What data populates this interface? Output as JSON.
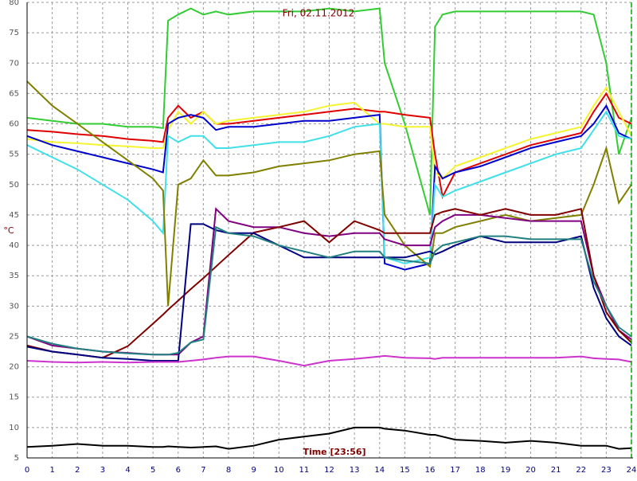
{
  "chart_data": {
    "type": "line",
    "title": "Fri, 02.11.2012",
    "y_label": "°C",
    "x_label": "Time [23:56]",
    "x": [
      0,
      1,
      2,
      3,
      4,
      5,
      5.4,
      5.6,
      6,
      6.5,
      7,
      7.5,
      8,
      9,
      10,
      11,
      12,
      13,
      14,
      14.2,
      15,
      16,
      16.2,
      16.5,
      17,
      18,
      19,
      20,
      21,
      22,
      22.5,
      23,
      23.5,
      24
    ],
    "xlim": [
      0,
      24
    ],
    "xticks": [
      0,
      1,
      2,
      3,
      4,
      5,
      6,
      7,
      8,
      9,
      10,
      11,
      12,
      13,
      14,
      15,
      16,
      17,
      18,
      19,
      20,
      21,
      22,
      23,
      24
    ],
    "ylim": [
      5,
      80
    ],
    "yticks": [
      5,
      10,
      15,
      20,
      25,
      30,
      35,
      40,
      45,
      50,
      55,
      60,
      65,
      70,
      75,
      80
    ],
    "grid": true,
    "series": [
      {
        "color": "#33cc33",
        "values": [
          61,
          60.5,
          60,
          60,
          59.5,
          59.5,
          59.3,
          77,
          78,
          79,
          78,
          78.5,
          78,
          78.5,
          78.5,
          78.5,
          79,
          78.5,
          79,
          70,
          60,
          45,
          76,
          78,
          78.5,
          78.5,
          78.5,
          78.5,
          78.5,
          78.5,
          78,
          70,
          55,
          61
        ]
      },
      {
        "color": "#e00000",
        "values": [
          59,
          58.7,
          58.3,
          58,
          57.5,
          57.2,
          57,
          61,
          63,
          61,
          62,
          60,
          60,
          60.5,
          61,
          61.5,
          62,
          62.5,
          62,
          62,
          61.5,
          61,
          55,
          48,
          52,
          53.5,
          55,
          56.5,
          57.5,
          58.5,
          62,
          65,
          61,
          60
        ]
      },
      {
        "color": "#f4f430",
        "values": [
          57.5,
          57,
          56.8,
          56.5,
          56.3,
          56,
          56,
          59,
          62,
          60,
          62,
          60,
          60.5,
          61,
          61.5,
          62,
          63,
          63.5,
          60,
          60,
          59.5,
          59.5,
          52,
          51,
          53,
          54.5,
          56,
          57.5,
          58.5,
          59.5,
          63,
          66,
          62,
          58
        ]
      },
      {
        "color": "#0000cc",
        "values": [
          58,
          56.5,
          55.5,
          54.5,
          53.5,
          52.5,
          52,
          60,
          61,
          61.5,
          61,
          59,
          59.5,
          59.5,
          60,
          60.5,
          60.5,
          61,
          61.5,
          37,
          36,
          37,
          53,
          51,
          52,
          53,
          54.5,
          56,
          57,
          58,
          60,
          63,
          58.5,
          57.5
        ]
      },
      {
        "color": "#40e0e8",
        "values": [
          56.5,
          54.5,
          52.5,
          50,
          47.5,
          44,
          42,
          58,
          57,
          58,
          58,
          56,
          56,
          56.5,
          57,
          57,
          58,
          59.5,
          60,
          38,
          37,
          38,
          50,
          48,
          49,
          50.5,
          52,
          53.5,
          55,
          56,
          59,
          62,
          58,
          57.5
        ]
      },
      {
        "color": "#808000",
        "values": [
          67,
          63,
          60,
          57,
          54,
          51,
          49,
          30,
          50,
          51,
          54,
          51.5,
          51.5,
          52,
          53,
          53.5,
          54,
          55,
          55.5,
          45,
          40,
          36.5,
          42,
          42,
          43,
          44,
          45,
          44,
          44.5,
          45,
          50,
          56,
          47,
          50
        ]
      },
      {
        "color": "#800080",
        "values": [
          25,
          23.5,
          23,
          22.5,
          22.3,
          22,
          22,
          22,
          22,
          24,
          25,
          46,
          44,
          43,
          43,
          42,
          41.5,
          42,
          42,
          41,
          40,
          40,
          43,
          44,
          45,
          45,
          44.5,
          44,
          44,
          44,
          35,
          30,
          26,
          24.5
        ]
      },
      {
        "color": "#800000",
        "values": [
          23.5,
          22.5,
          22,
          21.5,
          23.4,
          27.1,
          28.6,
          29.4,
          30.9,
          32.8,
          34.6,
          36.5,
          38.4,
          42.1,
          43,
          44,
          40.5,
          44,
          42.5,
          42,
          42,
          42,
          45,
          45.5,
          46,
          45,
          46,
          45,
          45,
          46,
          35,
          29,
          26,
          24
        ]
      },
      {
        "color": "#000080",
        "values": [
          23.3,
          22.5,
          22,
          21.5,
          21.3,
          21,
          21,
          21,
          21,
          43.5,
          43.5,
          42.5,
          42,
          42,
          40,
          38,
          38,
          38,
          38,
          38,
          38,
          39,
          38.5,
          39,
          40,
          41.5,
          40.5,
          40.5,
          40.5,
          41.5,
          33,
          28,
          25,
          23.5
        ]
      },
      {
        "color": "#208080",
        "values": [
          25,
          23.8,
          23,
          22.5,
          22.2,
          22,
          22,
          22,
          22.3,
          24,
          24.5,
          43,
          42,
          41.5,
          40,
          39,
          38,
          39,
          39,
          38,
          37.5,
          37,
          39,
          40,
          40.5,
          41.5,
          41.5,
          41,
          41,
          41,
          34,
          30,
          26.5,
          25
        ]
      },
      {
        "color": "#cc33cc",
        "values": [
          21,
          20.8,
          20.7,
          20.8,
          20.7,
          20.8,
          20.8,
          20.8,
          20.8,
          21,
          21.2,
          21.5,
          21.7,
          21.7,
          21,
          20.2,
          21,
          21.3,
          21.7,
          21.8,
          21.5,
          21.4,
          21.3,
          21.5,
          21.5,
          21.5,
          21.5,
          21.5,
          21.5,
          21.7,
          21.4,
          21.3,
          21.2,
          20.8
        ]
      },
      {
        "color": "#000000",
        "values": [
          6.8,
          7,
          7.3,
          7,
          7,
          6.8,
          6.8,
          6.9,
          6.8,
          6.7,
          6.8,
          6.9,
          6.5,
          7,
          8,
          8.5,
          9,
          10,
          10,
          9.8,
          9.5,
          8.8,
          8.8,
          8.5,
          8,
          7.8,
          7.5,
          7.8,
          7.5,
          7,
          7,
          7,
          6.5,
          6.6
        ]
      }
    ]
  }
}
